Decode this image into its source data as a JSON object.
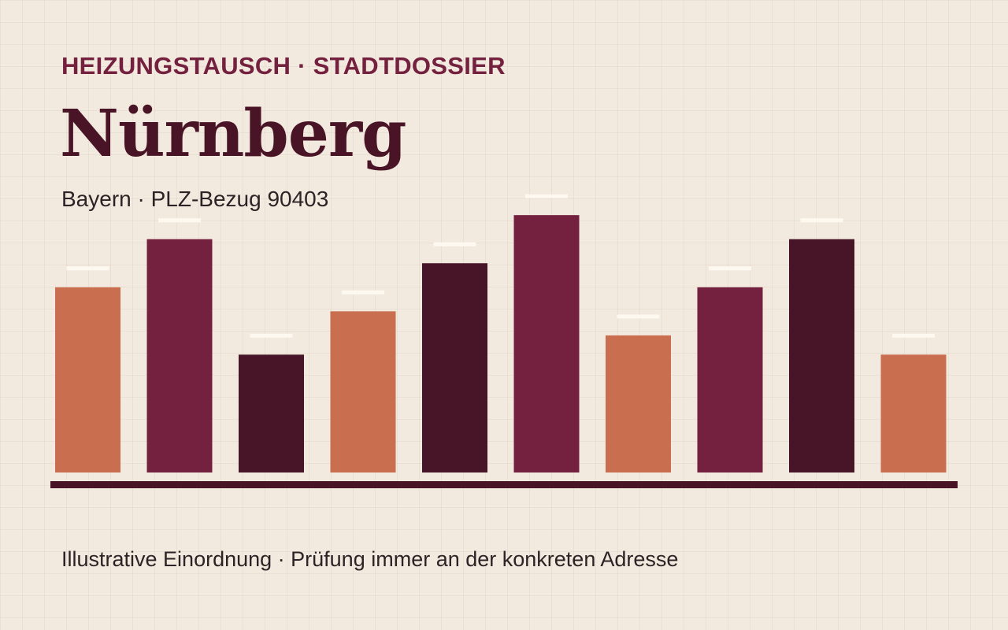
{
  "header": {
    "eyebrow": "HEIZUNGSTAUSCH · STADTDOSSIER",
    "city": "Nürnberg",
    "subtitle": "Bayern · PLZ-Bezug 90403"
  },
  "footnote": "Illustrative Einordnung · Prüfung immer an der konkreten Adresse",
  "colors": {
    "background": "#f3eadf",
    "accent": "#74203f",
    "terracotta": "#c96e4e",
    "wine": "#74203f",
    "dark_wine": "#481427",
    "marker": "#fdf8f0",
    "baseline": "#4a1427"
  },
  "chart_data": {
    "type": "bar",
    "title": "",
    "xlabel": "",
    "ylabel": "",
    "grid": false,
    "legend": "none",
    "ylim": [
      0,
      11
    ],
    "values": [
      7.7,
      9.7,
      4.9,
      6.7,
      8.7,
      10.7,
      5.7,
      7.7,
      9.7,
      4.9
    ],
    "bar_colors": [
      "terracotta",
      "wine",
      "dark_wine",
      "terracotta",
      "dark_wine",
      "wine",
      "terracotta",
      "wine",
      "dark_wine",
      "terracotta"
    ]
  }
}
